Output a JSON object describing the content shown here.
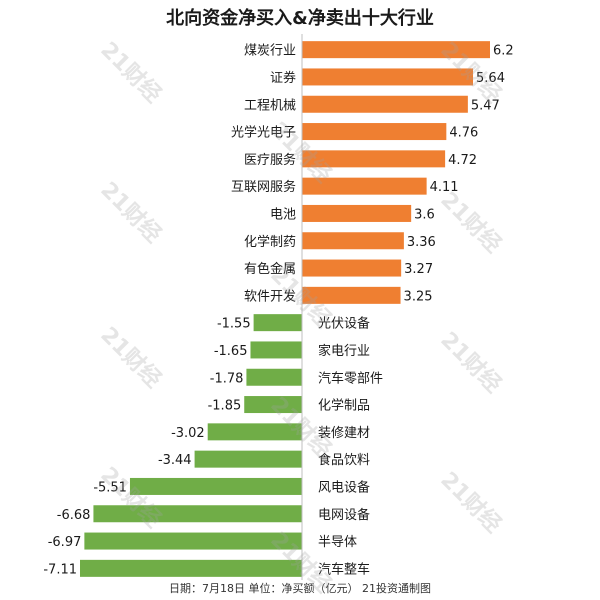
{
  "footer": "日期：7月18日 单位：净买额（亿元） 21投资通制图",
  "watermark_text": "21财经",
  "colors": {
    "positive": "#ef7f31",
    "negative": "#70ad47",
    "axis": "#bfbfbf",
    "text": "#1a1a1a"
  },
  "chart_data": {
    "type": "bar",
    "orientation": "horizontal",
    "title": "北向资金净买入&净卖出十大行业",
    "categories": [
      "煤炭行业",
      "证券",
      "工程机械",
      "光学光电子",
      "医疗服务",
      "互联网服务",
      "电池",
      "化学制药",
      "有色金属",
      "软件开发",
      "光伏设备",
      "家电行业",
      "汽车零部件",
      "化学制品",
      "装修建材",
      "食品饮料",
      "风电设备",
      "电网设备",
      "半导体",
      "汽车整车"
    ],
    "values": [
      6.2,
      5.64,
      5.47,
      4.76,
      4.72,
      4.11,
      3.6,
      3.36,
      3.27,
      3.25,
      -1.55,
      -1.65,
      -1.78,
      -1.85,
      -3.02,
      -3.44,
      -5.51,
      -6.68,
      -6.97,
      -7.11
    ],
    "value_labels": [
      "6.2",
      "5.64",
      "5.47",
      "4.76",
      "4.72",
      "4.11",
      "3.6",
      "3.36",
      "3.27",
      "3.25",
      "-1.55",
      "-1.65",
      "-1.78",
      "-1.85",
      "-3.02",
      "-3.44",
      "-5.51",
      "-6.68",
      "-6.97",
      "-7.11"
    ],
    "xlim": [
      -7.11,
      6.2
    ],
    "grid": false,
    "legend": "none",
    "unit": "亿元"
  }
}
